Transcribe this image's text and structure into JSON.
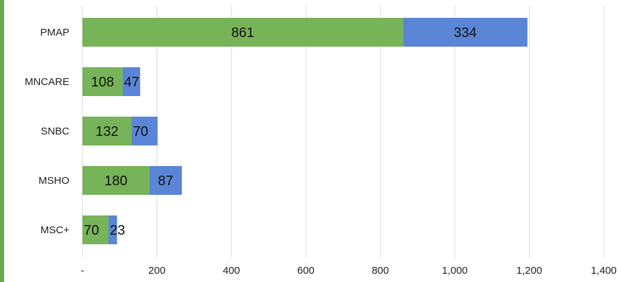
{
  "chart_data": {
    "type": "bar",
    "orientation": "horizontal",
    "stacked": true,
    "categories": [
      "PMAP",
      "MNCARE",
      "SNBC",
      "MSHO",
      "MSC+"
    ],
    "series": [
      {
        "color": "#77b358",
        "values": [
          861,
          108,
          132,
          180,
          70
        ]
      },
      {
        "color": "#5b85d6",
        "values": [
          334,
          47,
          70,
          87,
          23
        ]
      }
    ],
    "xlim": [
      0,
      1400
    ],
    "xticks": [
      0,
      200,
      400,
      600,
      800,
      1000,
      1200,
      1400
    ],
    "xtick_labels": [
      "-",
      "200",
      "400",
      "600",
      "800",
      "1,000",
      "1,200",
      "1,400"
    ],
    "grid": "vertical",
    "legend": "none",
    "colors": {
      "gridline": "#d9d9d9",
      "frame_accent": "#6aa84f"
    }
  }
}
